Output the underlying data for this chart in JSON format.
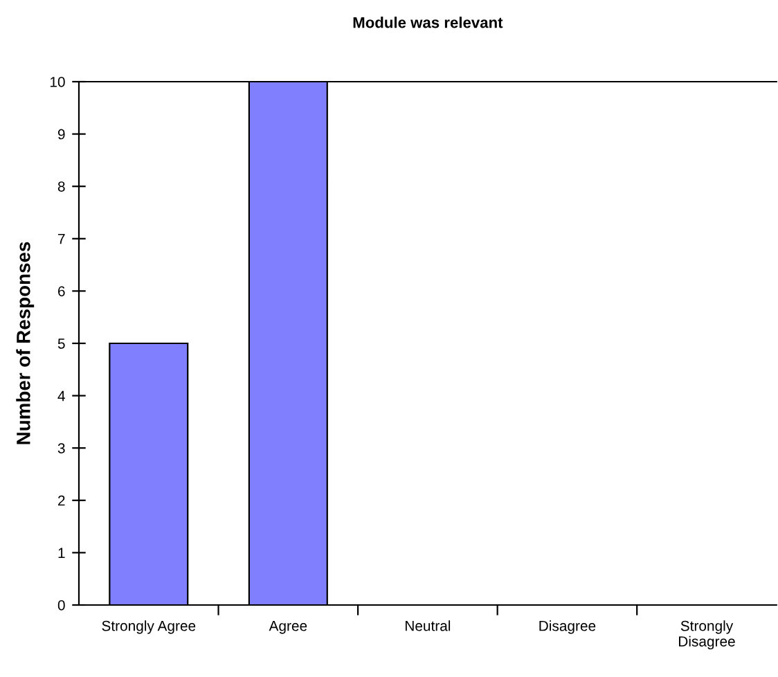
{
  "chart_data": {
    "type": "bar",
    "title": "Module was relevant",
    "ylabel": "Number of Responses",
    "categories": [
      "Strongly Agree",
      "Agree",
      "Neutral",
      "Disagree",
      "Strongly\nDisagree"
    ],
    "values": [
      5,
      10,
      0,
      0,
      0
    ],
    "color": "#8080ff",
    "ylim": [
      0,
      10
    ],
    "yticks": [
      0,
      1,
      2,
      3,
      4,
      5,
      6,
      7,
      8,
      9,
      10
    ],
    "grid": false,
    "legend": false
  }
}
